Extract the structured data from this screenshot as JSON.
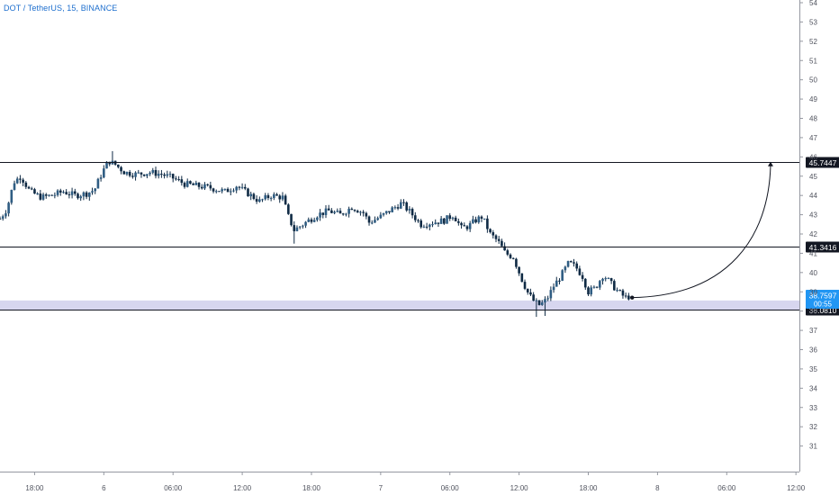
{
  "header": {
    "symbol_title": "DOT / TetherUS, 15, BINANCE"
  },
  "colors": {
    "background": "#ffffff",
    "candle_up": "#2f5d83",
    "candle_down": "#0f2a44",
    "line": "#131722",
    "axis_text": "#50535e",
    "axis_line": "#9598a1",
    "zone_fill": "#d7d6ef",
    "zone_edge": "#b5b3de",
    "price_tag_bg": "#131722",
    "price_tag_text": "#ffffff",
    "last_price_bg": "#2196f3",
    "last_price_text": "#ffffff"
  },
  "chart_data": {
    "type": "candlestick",
    "y_axis": {
      "position": "right",
      "range": [
        30,
        54
      ],
      "ticks": [
        "54",
        "53",
        "52",
        "51",
        "50",
        "49",
        "48",
        "47",
        "46",
        "45",
        "44",
        "43",
        "42",
        "41",
        "40",
        "39",
        "38",
        "37",
        "36",
        "35",
        "34",
        "33",
        "32",
        "31"
      ]
    },
    "x_axis": {
      "ticks": [
        {
          "label": "18:00",
          "t": 0
        },
        {
          "label": "6",
          "t": 6
        },
        {
          "label": "06:00",
          "t": 12
        },
        {
          "label": "12:00",
          "t": 18
        },
        {
          "label": "18:00",
          "t": 24
        },
        {
          "label": "7",
          "t": 30
        },
        {
          "label": "06:00",
          "t": 36
        },
        {
          "label": "12:00",
          "t": 42
        },
        {
          "label": "18:00",
          "t": 48
        },
        {
          "label": "8",
          "t": 54
        },
        {
          "label": "06:00",
          "t": 60
        },
        {
          "label": "12:00",
          "t": 66
        }
      ],
      "range": [
        -3,
        66.3
      ]
    },
    "horizontal_levels": [
      {
        "price": 45.7447,
        "label": "45.7447"
      },
      {
        "price": 41.3416,
        "label": "41.3416"
      },
      {
        "price": 38.081,
        "label": "38.0810"
      }
    ],
    "zone": {
      "from": 38.081,
      "to": 38.55
    },
    "last_price": {
      "label": "38.7597",
      "countdown": "00:55",
      "price": 38.7597
    },
    "projection": {
      "from": {
        "t": 51.8,
        "price": 38.7
      },
      "to": {
        "t": 63.8,
        "price": 45.7447
      }
    },
    "anchors": [
      {
        "t": -3,
        "price": 42.8
      },
      {
        "t": -2.4,
        "price": 43.3
      },
      {
        "t": -1.8,
        "price": 44.7
      },
      {
        "t": -1.2,
        "price": 45.0
      },
      {
        "t": -0.4,
        "price": 44.2
      },
      {
        "t": 0.6,
        "price": 43.9
      },
      {
        "t": 1.5,
        "price": 44.0
      },
      {
        "t": 2.5,
        "price": 44.2
      },
      {
        "t": 3.5,
        "price": 44.0
      },
      {
        "t": 4.5,
        "price": 44.1
      },
      {
        "t": 5.2,
        "price": 44.3
      },
      {
        "t": 5.7,
        "price": 45.0
      },
      {
        "t": 6.4,
        "price": 45.8
      },
      {
        "t": 7.0,
        "price": 45.6
      },
      {
        "t": 7.8,
        "price": 45.2
      },
      {
        "t": 8.8,
        "price": 45.1
      },
      {
        "t": 10.0,
        "price": 45.2
      },
      {
        "t": 11.0,
        "price": 45.1
      },
      {
        "t": 12.0,
        "price": 44.9
      },
      {
        "t": 13.0,
        "price": 44.6
      },
      {
        "t": 14.0,
        "price": 44.5
      },
      {
        "t": 15.2,
        "price": 44.4
      },
      {
        "t": 16.5,
        "price": 44.2
      },
      {
        "t": 17.5,
        "price": 44.5
      },
      {
        "t": 18.5,
        "price": 44.1
      },
      {
        "t": 19.5,
        "price": 43.7
      },
      {
        "t": 20.5,
        "price": 44.0
      },
      {
        "t": 21.5,
        "price": 43.9
      },
      {
        "t": 22.0,
        "price": 42.9
      },
      {
        "t": 22.5,
        "price": 42.2
      },
      {
        "t": 23.5,
        "price": 42.6
      },
      {
        "t": 24.5,
        "price": 43.0
      },
      {
        "t": 25.5,
        "price": 43.2
      },
      {
        "t": 26.5,
        "price": 43.0
      },
      {
        "t": 27.5,
        "price": 43.4
      },
      {
        "t": 28.5,
        "price": 43.1
      },
      {
        "t": 29.0,
        "price": 42.6
      },
      {
        "t": 30.0,
        "price": 42.9
      },
      {
        "t": 31.0,
        "price": 43.3
      },
      {
        "t": 31.8,
        "price": 43.6
      },
      {
        "t": 32.6,
        "price": 43.1
      },
      {
        "t": 33.5,
        "price": 42.5
      },
      {
        "t": 34.5,
        "price": 42.6
      },
      {
        "t": 35.5,
        "price": 42.7
      },
      {
        "t": 36.3,
        "price": 43.0
      },
      {
        "t": 37.0,
        "price": 42.3
      },
      {
        "t": 37.6,
        "price": 42.4
      },
      {
        "t": 38.2,
        "price": 42.7
      },
      {
        "t": 38.8,
        "price": 42.9
      },
      {
        "t": 39.5,
        "price": 42.0
      },
      {
        "t": 40.2,
        "price": 41.6
      },
      {
        "t": 40.8,
        "price": 41.0
      },
      {
        "t": 41.5,
        "price": 40.8
      },
      {
        "t": 42.2,
        "price": 39.7
      },
      {
        "t": 42.8,
        "price": 38.9
      },
      {
        "t": 43.3,
        "price": 38.5
      },
      {
        "t": 43.8,
        "price": 38.3
      },
      {
        "t": 44.4,
        "price": 38.6
      },
      {
        "t": 45.0,
        "price": 39.3
      },
      {
        "t": 45.6,
        "price": 39.8
      },
      {
        "t": 46.3,
        "price": 40.5
      },
      {
        "t": 46.9,
        "price": 40.3
      },
      {
        "t": 47.5,
        "price": 39.8
      },
      {
        "t": 48.0,
        "price": 39.0
      },
      {
        "t": 48.6,
        "price": 39.2
      },
      {
        "t": 49.3,
        "price": 39.9
      },
      {
        "t": 50.0,
        "price": 39.4
      },
      {
        "t": 50.6,
        "price": 39.0
      },
      {
        "t": 51.2,
        "price": 38.7
      },
      {
        "t": 51.5,
        "price": 38.75
      }
    ],
    "extremes": [
      {
        "t": 6.7,
        "high": 46.3
      },
      {
        "t": 22.6,
        "low": 41.5
      },
      {
        "t": 43.4,
        "low": 37.7
      },
      {
        "t": 44.2,
        "low": 37.75
      }
    ]
  }
}
